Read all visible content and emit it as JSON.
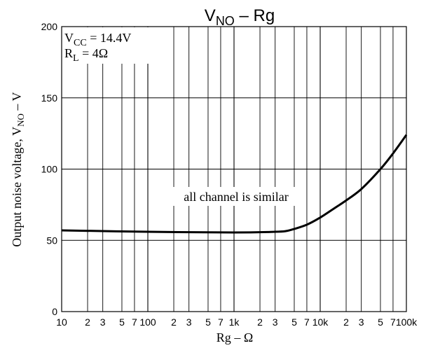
{
  "chart_data": {
    "type": "line",
    "title": {
      "main": "V",
      "sub": "NO",
      "rest": " – Rg"
    },
    "xlabel": {
      "main": "Rg",
      "rest": " – Ω"
    },
    "ylabel": {
      "main": "Output noise voltage, V",
      "sub": "NO",
      "rest": " – V"
    },
    "x_scale": "log",
    "xlim": [
      10,
      100000
    ],
    "ylim": [
      0,
      200
    ],
    "y_ticks": [
      0,
      50,
      100,
      150,
      200
    ],
    "x_ticks": [
      {
        "value": 10,
        "label": "10",
        "major": true
      },
      {
        "value": 20,
        "label": "2",
        "major": false
      },
      {
        "value": 30,
        "label": "3",
        "major": false
      },
      {
        "value": 50,
        "label": "5",
        "major": false
      },
      {
        "value": 70,
        "label": "7",
        "major": false
      },
      {
        "value": 100,
        "label": "100",
        "major": true
      },
      {
        "value": 200,
        "label": "2",
        "major": false
      },
      {
        "value": 300,
        "label": "3",
        "major": false
      },
      {
        "value": 500,
        "label": "5",
        "major": false
      },
      {
        "value": 700,
        "label": "7",
        "major": false
      },
      {
        "value": 1000,
        "label": "1k",
        "major": true
      },
      {
        "value": 2000,
        "label": "2",
        "major": false
      },
      {
        "value": 3000,
        "label": "3",
        "major": false
      },
      {
        "value": 5000,
        "label": "5",
        "major": false
      },
      {
        "value": 7000,
        "label": "7",
        "major": false
      },
      {
        "value": 10000,
        "label": "10k",
        "major": true
      },
      {
        "value": 20000,
        "label": "2",
        "major": false
      },
      {
        "value": 30000,
        "label": "3",
        "major": false
      },
      {
        "value": 50000,
        "label": "5",
        "major": false
      },
      {
        "value": 70000,
        "label": "7",
        "major": false
      },
      {
        "value": 100000,
        "label": "100k",
        "major": true
      }
    ],
    "grid": true,
    "conditions": [
      {
        "main": "V",
        "sub": "CC",
        "rest": " = 14.4V"
      },
      {
        "main": "R",
        "sub": "L",
        "rest": " = 4Ω"
      }
    ],
    "annotation": "all channel is similar",
    "series": [
      {
        "x": [
          10,
          100,
          1000,
          3000,
          4000,
          5000,
          7000,
          10000,
          15000,
          20000,
          30000,
          50000,
          70000,
          100000
        ],
        "y": [
          57,
          56,
          55.5,
          56,
          56.5,
          58,
          61,
          66,
          73,
          78,
          86,
          100,
          111,
          124
        ]
      }
    ]
  }
}
